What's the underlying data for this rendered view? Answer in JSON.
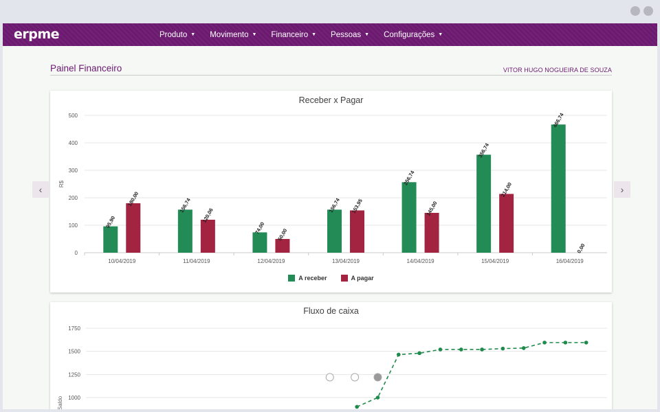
{
  "app": {
    "logo": "erpme",
    "nav": [
      "Produto",
      "Movimento",
      "Financeiro",
      "Pessoas",
      "Configurações"
    ],
    "icons": [
      "refresh-icon",
      "bank-icon",
      "biohazard-icon",
      "help-icon"
    ],
    "help_glyph": "?"
  },
  "page": {
    "title": "Painel Financeiro",
    "user": "VITOR HUGO NOGUEIRA DE SOUZA"
  },
  "colors": {
    "brand": "#6c1a70",
    "receber": "#228b56",
    "pagar": "#a32440",
    "flow": "#1f8a4c"
  },
  "chart_data": [
    {
      "type": "bar",
      "title": "Receber x Pagar",
      "ylabel": "R$",
      "ylim": [
        0,
        500
      ],
      "yticks": [
        "0",
        "100",
        "200",
        "300",
        "400",
        "500"
      ],
      "categories": [
        "10/04/2019",
        "11/04/2019",
        "12/04/2019",
        "13/04/2019",
        "14/04/2019",
        "15/04/2019",
        "16/04/2019"
      ],
      "series": [
        {
          "name": "A receber",
          "values": [
            95.9,
            156.74,
            74.0,
            156.74,
            256.74,
            356.74,
            466.74
          ],
          "labels": [
            "95,90",
            "156,74",
            "74,00",
            "156,74",
            "256,74",
            "356,74",
            "466,74"
          ]
        },
        {
          "name": "A pagar",
          "values": [
            180.0,
            120.06,
            50.0,
            153.95,
            145.0,
            214.0,
            0.0
          ],
          "labels": [
            "180,00",
            "120,06",
            "50,00",
            "153,95",
            "145,00",
            "214,00",
            "0,00"
          ]
        }
      ],
      "legend": "bottom"
    },
    {
      "type": "line",
      "title": "Fluxo de caixa",
      "ylabel": "Saldo",
      "ylim": [
        1000,
        1750
      ],
      "yticks": [
        "1000",
        "1250",
        "1500",
        "1750"
      ],
      "points": [
        [
          13.0,
          900
        ],
        [
          14.0,
          1000
        ],
        [
          15.0,
          1465
        ],
        [
          16.0,
          1480
        ],
        [
          17.0,
          1520
        ],
        [
          18.0,
          1520
        ],
        [
          19.0,
          1520
        ],
        [
          20.0,
          1530
        ],
        [
          21.0,
          1535
        ],
        [
          22.0,
          1595
        ],
        [
          23.0,
          1595
        ],
        [
          24.0,
          1595
        ]
      ],
      "xlim": [
        0,
        25
      ],
      "line_style": "dashed"
    }
  ]
}
